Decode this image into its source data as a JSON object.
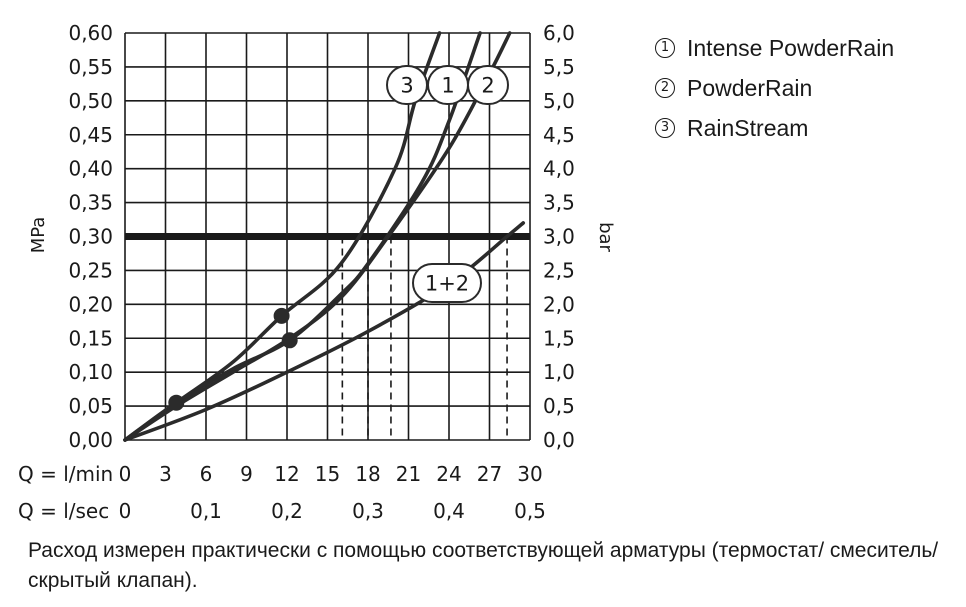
{
  "chart_data": {
    "type": "line",
    "y_left": {
      "label": "MPa",
      "ticks": [
        "0,00",
        "0,05",
        "0,10",
        "0,15",
        "0,20",
        "0,25",
        "0,30",
        "0,35",
        "0,40",
        "0,45",
        "0,50",
        "0,55",
        "0,60"
      ],
      "range": [
        0,
        0.6
      ]
    },
    "y_right": {
      "label": "bar",
      "ticks": [
        "0,0",
        "0,5",
        "1,0",
        "1,5",
        "2,0",
        "2,5",
        "3,0",
        "3,5",
        "4,0",
        "4,5",
        "5,0",
        "5,5",
        "6,0"
      ],
      "range": [
        0,
        6
      ]
    },
    "x_lmin": {
      "label": "Q = l/min",
      "ticks": [
        "0",
        "3",
        "6",
        "9",
        "12",
        "15",
        "18",
        "21",
        "24",
        "27",
        "30"
      ],
      "range": [
        0,
        30
      ]
    },
    "x_lsec": {
      "label": "Q = l/sec",
      "ticks": [
        "0",
        "0,1",
        "0,2",
        "0,3",
        "0,4",
        "0,5"
      ]
    },
    "grid": true,
    "reference_line": {
      "y_mpa": 0.3
    },
    "series": [
      {
        "callout": "3",
        "x": [
          0,
          3.8,
          8,
          11.6,
          16,
          20,
          21.5,
          23.3
        ],
        "y": [
          0,
          0.055,
          0.115,
          0.183,
          0.26,
          0.4,
          0.5,
          0.6
        ]
      },
      {
        "callout": "1",
        "x": [
          0,
          3.8,
          8,
          12.2,
          16,
          18,
          22,
          24,
          26.3
        ],
        "y": [
          0,
          0.055,
          0.105,
          0.147,
          0.215,
          0.26,
          0.38,
          0.47,
          0.6
        ]
      },
      {
        "callout": "2",
        "x": [
          0,
          3.8,
          8,
          12.2,
          16,
          19.5,
          24,
          27,
          28.5
        ],
        "y": [
          0,
          0.05,
          0.1,
          0.15,
          0.21,
          0.3,
          0.43,
          0.54,
          0.6
        ]
      },
      {
        "callout": "1+2",
        "x": [
          0,
          6,
          12,
          18,
          24,
          28.3,
          29.5
        ],
        "y": [
          0,
          0.045,
          0.1,
          0.16,
          0.23,
          0.3,
          0.32
        ]
      }
    ],
    "markers": [
      {
        "x": 3.8,
        "y": 0.055
      },
      {
        "x": 11.6,
        "y": 0.183
      },
      {
        "x": 12.2,
        "y": 0.147
      }
    ],
    "dashed_drops_x": [
      16.1,
      18.0,
      19.7,
      28.3
    ]
  },
  "legend": [
    {
      "badge": "1",
      "label": "Intense PowderRain"
    },
    {
      "badge": "2",
      "label": "PowderRain"
    },
    {
      "badge": "3",
      "label": "RainStream"
    }
  ],
  "footnote": "Расход измерен практически с помощью соответствующей арматуры (термостат/ смеситель/скрытый клапан).",
  "colors": {
    "line": "#2b2b2b",
    "grid": "#1a1a1a"
  }
}
